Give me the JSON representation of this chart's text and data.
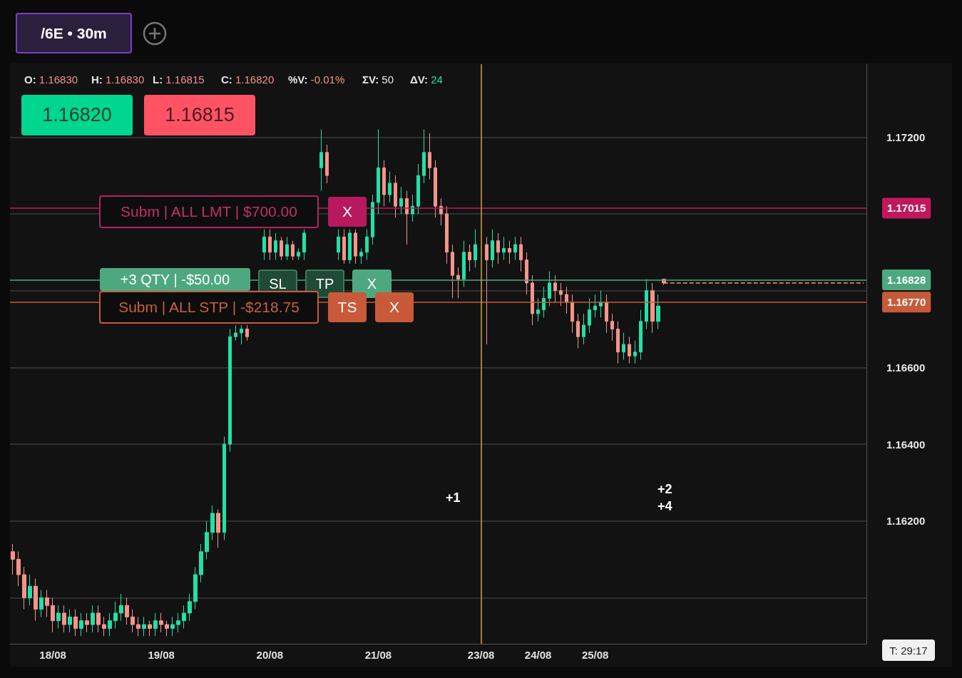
{
  "chart_data": {
    "type": "candlestick",
    "categories": [
      null,
      null,
      null,
      null,
      null,
      null,
      null,
      "18/08",
      null,
      null,
      null,
      null,
      null,
      null,
      null,
      null,
      null,
      null,
      null,
      null,
      null,
      null,
      null,
      null,
      null,
      null,
      "19/08",
      null,
      null,
      null,
      null,
      null,
      null,
      null,
      null,
      null,
      null,
      null,
      null,
      null,
      null,
      null,
      null,
      null,
      null,
      "20/08",
      null,
      null,
      null,
      null,
      null,
      null,
      null,
      null,
      null,
      null,
      null,
      null,
      null,
      null,
      null,
      null,
      null,
      null,
      "21/08",
      null,
      null,
      null,
      null,
      null,
      null,
      null,
      null,
      null,
      null,
      null,
      null,
      null,
      null,
      null,
      null,
      null,
      "23/08",
      null,
      null,
      null,
      null,
      null,
      null,
      null,
      null,
      null,
      "24/08",
      null,
      null,
      null,
      null,
      null,
      null,
      null,
      null,
      null,
      "25/08",
      null,
      null,
      null,
      null,
      null,
      null,
      null,
      null,
      null,
      null,
      null,
      null,
      null,
      null,
      null,
      null,
      null,
      null,
      null,
      null,
      null,
      null,
      null,
      null,
      null,
      null,
      null,
      null,
      null,
      null,
      null,
      null,
      null,
      null,
      null,
      null,
      null,
      null,
      null,
      null,
      null,
      null,
      null,
      null,
      null,
      null,
      null
    ],
    "ohlc": [
      [
        1.1612,
        1.1614,
        1.1606,
        1.161
      ],
      [
        1.161,
        1.1612,
        1.1603,
        1.1606
      ],
      [
        1.1606,
        1.1608,
        1.1597,
        1.16
      ],
      [
        1.16,
        1.1606,
        1.1598,
        1.1603
      ],
      [
        1.1603,
        1.1605,
        1.1594,
        1.1597
      ],
      [
        1.1597,
        1.1602,
        1.1595,
        1.16
      ],
      [
        1.16,
        1.1602,
        1.1595,
        1.1598
      ],
      [
        1.1598,
        1.16,
        1.1591,
        1.1594
      ],
      [
        1.1594,
        1.1598,
        1.1592,
        1.1596
      ],
      [
        1.1596,
        1.1598,
        1.1591,
        1.1593
      ],
      [
        1.1593,
        1.1597,
        1.1591,
        1.1595
      ],
      [
        1.1595,
        1.1597,
        1.159,
        1.1592
      ],
      [
        1.1592,
        1.1596,
        1.159,
        1.1594
      ],
      [
        1.1594,
        1.1596,
        1.1591,
        1.1593
      ],
      [
        1.1593,
        1.1598,
        1.1591,
        1.1596
      ],
      [
        1.1596,
        1.1598,
        1.1591,
        1.1593
      ],
      [
        1.1593,
        1.1595,
        1.159,
        1.1592
      ],
      [
        1.1592,
        1.1596,
        1.159,
        1.1594
      ],
      [
        1.1594,
        1.1599,
        1.1592,
        1.1596
      ],
      [
        1.1596,
        1.1601,
        1.1594,
        1.1598
      ],
      [
        1.1598,
        1.16,
        1.1593,
        1.1595
      ],
      [
        1.1595,
        1.1597,
        1.1591,
        1.1593
      ],
      [
        1.1593,
        1.1595,
        1.159,
        1.1592
      ],
      [
        1.1592,
        1.1595,
        1.159,
        1.1593
      ],
      [
        1.1593,
        1.1594,
        1.159,
        1.1592
      ],
      [
        1.1592,
        1.1596,
        1.159,
        1.1594
      ],
      [
        1.1594,
        1.1596,
        1.1591,
        1.1593
      ],
      [
        1.1593,
        1.1594,
        1.159,
        1.1592
      ],
      [
        1.1592,
        1.1595,
        1.159,
        1.1593
      ],
      [
        1.1593,
        1.1596,
        1.1591,
        1.1594
      ],
      [
        1.1594,
        1.1598,
        1.1592,
        1.1596
      ],
      [
        1.1596,
        1.1601,
        1.1594,
        1.1599
      ],
      [
        1.1599,
        1.1608,
        1.1597,
        1.1606
      ],
      [
        1.1606,
        1.1614,
        1.1604,
        1.1612
      ],
      [
        1.1612,
        1.162,
        1.161,
        1.1617
      ],
      [
        1.1617,
        1.1624,
        1.1615,
        1.1622
      ],
      [
        1.1622,
        1.1623,
        1.1613,
        1.1617
      ],
      [
        1.1617,
        1.1642,
        1.1615,
        1.164
      ],
      [
        1.164,
        1.167,
        1.1638,
        1.1668
      ],
      [
        1.1668,
        1.1671,
        1.1667,
        1.1669
      ],
      [
        1.1669,
        1.1671,
        1.1666,
        1.167
      ],
      [
        1.167,
        1.1671,
        1.1667,
        1.1668
      ],
      null,
      null,
      [
        1.169,
        1.1696,
        1.1688,
        1.1694
      ],
      [
        1.1694,
        1.1696,
        1.1688,
        1.169
      ],
      [
        1.169,
        1.1695,
        1.1688,
        1.1693
      ],
      [
        1.1693,
        1.1694,
        1.1688,
        1.1689
      ],
      [
        1.1689,
        1.1694,
        1.1688,
        1.1692
      ],
      [
        1.1692,
        1.1693,
        1.1688,
        1.1689
      ],
      [
        1.1689,
        1.1691,
        1.1688,
        1.169
      ],
      [
        1.169,
        1.1696,
        1.1688,
        1.1695
      ],
      null,
      null,
      [
        1.1712,
        1.1722,
        1.1706,
        1.1716
      ],
      [
        1.1716,
        1.1718,
        1.1708,
        1.171
      ],
      null,
      [
        1.169,
        1.1696,
        1.1688,
        1.1694
      ],
      [
        1.1694,
        1.1696,
        1.1687,
        1.1688
      ],
      [
        1.1688,
        1.1696,
        1.1687,
        1.1695
      ],
      [
        1.1695,
        1.1696,
        1.1687,
        1.1689
      ],
      [
        1.1689,
        1.1691,
        1.1687,
        1.169
      ],
      [
        1.169,
        1.1696,
        1.1688,
        1.1694
      ],
      [
        1.1694,
        1.1705,
        1.1692,
        1.1703
      ],
      [
        1.1703,
        1.1722,
        1.17,
        1.1712
      ],
      [
        1.1712,
        1.1714,
        1.1702,
        1.1705
      ],
      [
        1.1705,
        1.1711,
        1.1703,
        1.1708
      ],
      [
        1.1708,
        1.171,
        1.1699,
        1.1702
      ],
      [
        1.1702,
        1.1707,
        1.17,
        1.1704
      ],
      [
        1.1704,
        1.1706,
        1.1692,
        1.17
      ],
      [
        1.17,
        1.1705,
        1.1698,
        1.1702
      ],
      [
        1.1702,
        1.1713,
        1.17,
        1.171
      ],
      [
        1.171,
        1.1722,
        1.1708,
        1.1716
      ],
      [
        1.1716,
        1.1721,
        1.1709,
        1.1712
      ],
      [
        1.1712,
        1.1714,
        1.1699,
        1.1702
      ],
      [
        1.1702,
        1.1704,
        1.1697,
        1.17
      ],
      [
        1.17,
        1.1702,
        1.1687,
        1.169
      ],
      [
        1.169,
        1.1692,
        1.1678,
        1.1684
      ],
      [
        1.1684,
        1.1686,
        1.1678,
        1.1683
      ],
      [
        1.1683,
        1.1693,
        1.1681,
        1.169
      ],
      [
        1.169,
        1.1692,
        1.1685,
        1.1688
      ],
      [
        1.1688,
        1.1696,
        1.1686,
        1.1692
      ],
      null,
      [
        1.1692,
        1.1694,
        1.1666,
        1.1688
      ],
      [
        1.1688,
        1.1696,
        1.1686,
        1.1693
      ],
      [
        1.1693,
        1.1695,
        1.1687,
        1.169
      ],
      [
        1.169,
        1.1694,
        1.1688,
        1.1691
      ],
      [
        1.1691,
        1.1693,
        1.1687,
        1.169
      ],
      [
        1.169,
        1.1694,
        1.1688,
        1.1692
      ],
      [
        1.1692,
        1.1694,
        1.1685,
        1.1688
      ],
      [
        1.1688,
        1.169,
        1.1679,
        1.1682
      ],
      [
        1.1682,
        1.1684,
        1.1671,
        1.1674
      ],
      [
        1.1674,
        1.1678,
        1.1672,
        1.1675
      ],
      [
        1.1675,
        1.1681,
        1.1673,
        1.1678
      ],
      [
        1.1678,
        1.1685,
        1.1676,
        1.1682
      ],
      [
        1.1682,
        1.1684,
        1.1677,
        1.168
      ],
      [
        1.168,
        1.1682,
        1.1676,
        1.1679
      ],
      [
        1.1679,
        1.1681,
        1.1674,
        1.1677
      ],
      [
        1.1677,
        1.1679,
        1.1669,
        1.1672
      ],
      [
        1.1672,
        1.1674,
        1.1665,
        1.1668
      ],
      [
        1.1668,
        1.1674,
        1.1666,
        1.1671
      ],
      [
        1.1671,
        1.1678,
        1.1669,
        1.1675
      ],
      [
        1.1675,
        1.1679,
        1.1673,
        1.1676
      ],
      [
        1.1676,
        1.168,
        1.1673,
        1.1677
      ],
      [
        1.1677,
        1.1679,
        1.1669,
        1.1672
      ],
      [
        1.1672,
        1.1674,
        1.1667,
        1.167
      ],
      [
        1.167,
        1.1672,
        1.1661,
        1.1664
      ],
      [
        1.1664,
        1.1669,
        1.1662,
        1.1666
      ],
      [
        1.1666,
        1.1668,
        1.1661,
        1.1663
      ],
      [
        1.1663,
        1.1667,
        1.1661,
        1.1664
      ],
      [
        1.1664,
        1.1675,
        1.1662,
        1.1672
      ],
      [
        1.1672,
        1.1683,
        1.167,
        1.168
      ],
      [
        1.168,
        1.1682,
        1.1669,
        1.1672
      ],
      [
        1.1672,
        1.1679,
        1.167,
        1.1676
      ],
      [
        1.1683,
        1.1683,
        1.16815,
        1.1682
      ],
      null,
      null,
      null,
      null,
      null,
      null,
      null,
      null,
      null,
      null,
      null,
      null,
      null,
      null,
      null,
      null,
      null,
      null,
      null,
      null,
      null,
      null,
      null,
      null,
      null,
      null,
      null,
      null,
      null,
      null,
      null,
      null,
      null,
      null,
      null
    ],
    "ylim": [
      1.1588,
      1.1739
    ],
    "yticks": [
      {
        "value": 1.16,
        "label": null
      },
      {
        "value": 1.162,
        "label": "1.16200"
      },
      {
        "value": 1.164,
        "label": "1.16400"
      },
      {
        "value": 1.166,
        "label": "1.16600"
      },
      {
        "value": 1.168,
        "label": null
      },
      {
        "value": 1.17,
        "label": null
      },
      {
        "value": 1.172,
        "label": "1.17200"
      }
    ],
    "grid": "y",
    "ref_lines": [
      {
        "axis": "y",
        "value": 1.17015,
        "label": "1.17015",
        "color": "#c2185b"
      },
      {
        "axis": "y",
        "value": 1.16828,
        "label": "1.16828",
        "color": "#4da880"
      },
      {
        "axis": "y",
        "value": 1.1677,
        "label": "1.16770",
        "color": "#c85a3a"
      },
      {
        "axis": "y",
        "value": 1.1682,
        "color": "#f4948c",
        "line_style": "dashed"
      },
      {
        "axis": "x",
        "value": "23/08",
        "color": "#d4a040"
      }
    ],
    "annotations": [
      "/6E • 30m",
      "O: 1.16830",
      "H: 1.16830",
      "L: 1.16815",
      "C: 1.16820",
      "%V: -0.01%",
      "ΣV: 50",
      "ΔV: 24",
      "1.16820",
      "1.16815",
      "Subm | ALL LMT | $700.00",
      "X",
      "+3 QTY | -$50.00",
      "SL",
      "TP",
      "X",
      "Subm | ALL STP | -$218.75",
      "TS",
      "X",
      "+1",
      "+2",
      "+4",
      "T: 29:17"
    ]
  }
}
